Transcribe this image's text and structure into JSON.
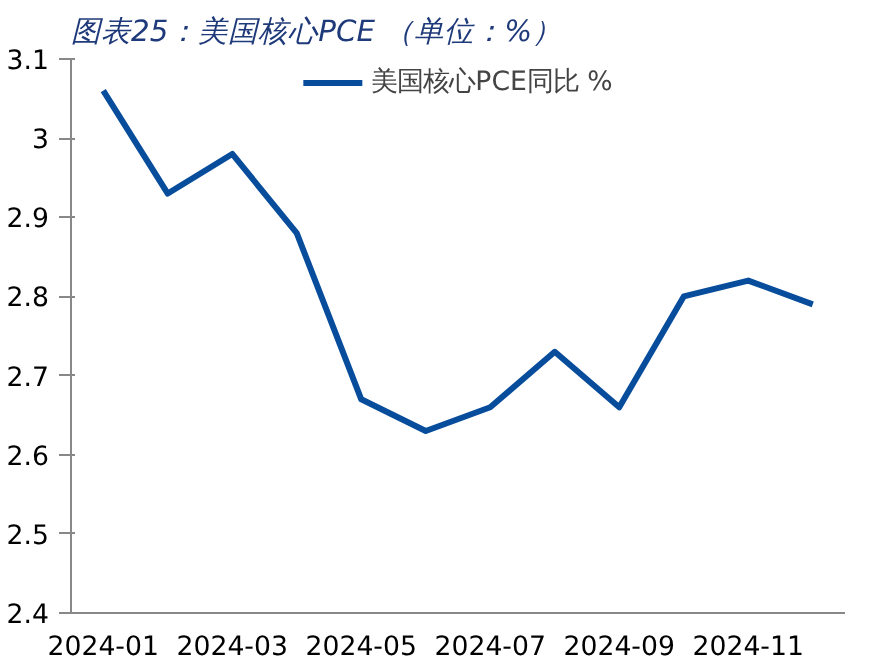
{
  "chart_data": {
    "type": "line",
    "title": "图表25：美国核心PCE （单位：%）",
    "categories": [
      "2024-01",
      null,
      "2024-03",
      null,
      "2024-05",
      null,
      "2024-07",
      null,
      "2024-09",
      null,
      "2024-11",
      null
    ],
    "series": [
      {
        "name": "美国核心PCE同比 %",
        "color": "#084d9c",
        "values": [
          3.06,
          2.93,
          2.98,
          2.88,
          2.67,
          2.63,
          2.66,
          2.73,
          2.66,
          2.8,
          2.82,
          2.79
        ]
      }
    ],
    "ylim": [
      2.4,
      3.1
    ],
    "yticks": [
      2.4,
      2.5,
      2.6,
      2.7,
      2.8,
      2.9,
      3,
      3.1
    ],
    "grid": false,
    "legend": "top",
    "marker": "none"
  }
}
